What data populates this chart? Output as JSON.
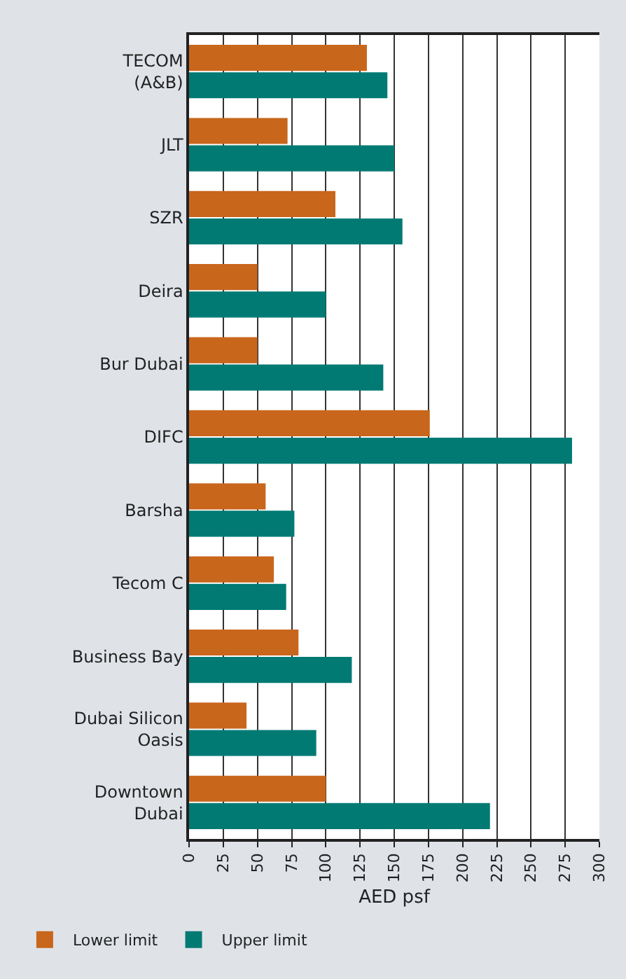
{
  "chart_data": {
    "type": "bar",
    "orientation": "horizontal",
    "xlabel": "AED psf",
    "categories": [
      "TECOM\n(A&B)",
      "JLT",
      "SZR",
      "Deira",
      "Bur Dubai",
      "DIFC",
      "Barsha",
      "Tecom C",
      "Business Bay",
      "Dubai Silicon\nOasis",
      "Downtown\nDubai"
    ],
    "series": [
      {
        "name": "Lower limit",
        "color": "#c8661c",
        "values": [
          130,
          72,
          107,
          50,
          50,
          176,
          56,
          62,
          80,
          42,
          100
        ]
      },
      {
        "name": "Upper limit",
        "color": "#007a73",
        "values": [
          145,
          150,
          156,
          100,
          142,
          280,
          77,
          71,
          119,
          93,
          220
        ]
      }
    ],
    "xlim": [
      0,
      300
    ],
    "xticks": [
      0,
      25,
      50,
      75,
      100,
      125,
      150,
      175,
      200,
      225,
      250,
      275,
      300
    ],
    "grid": "x",
    "legend": "bottom left"
  }
}
